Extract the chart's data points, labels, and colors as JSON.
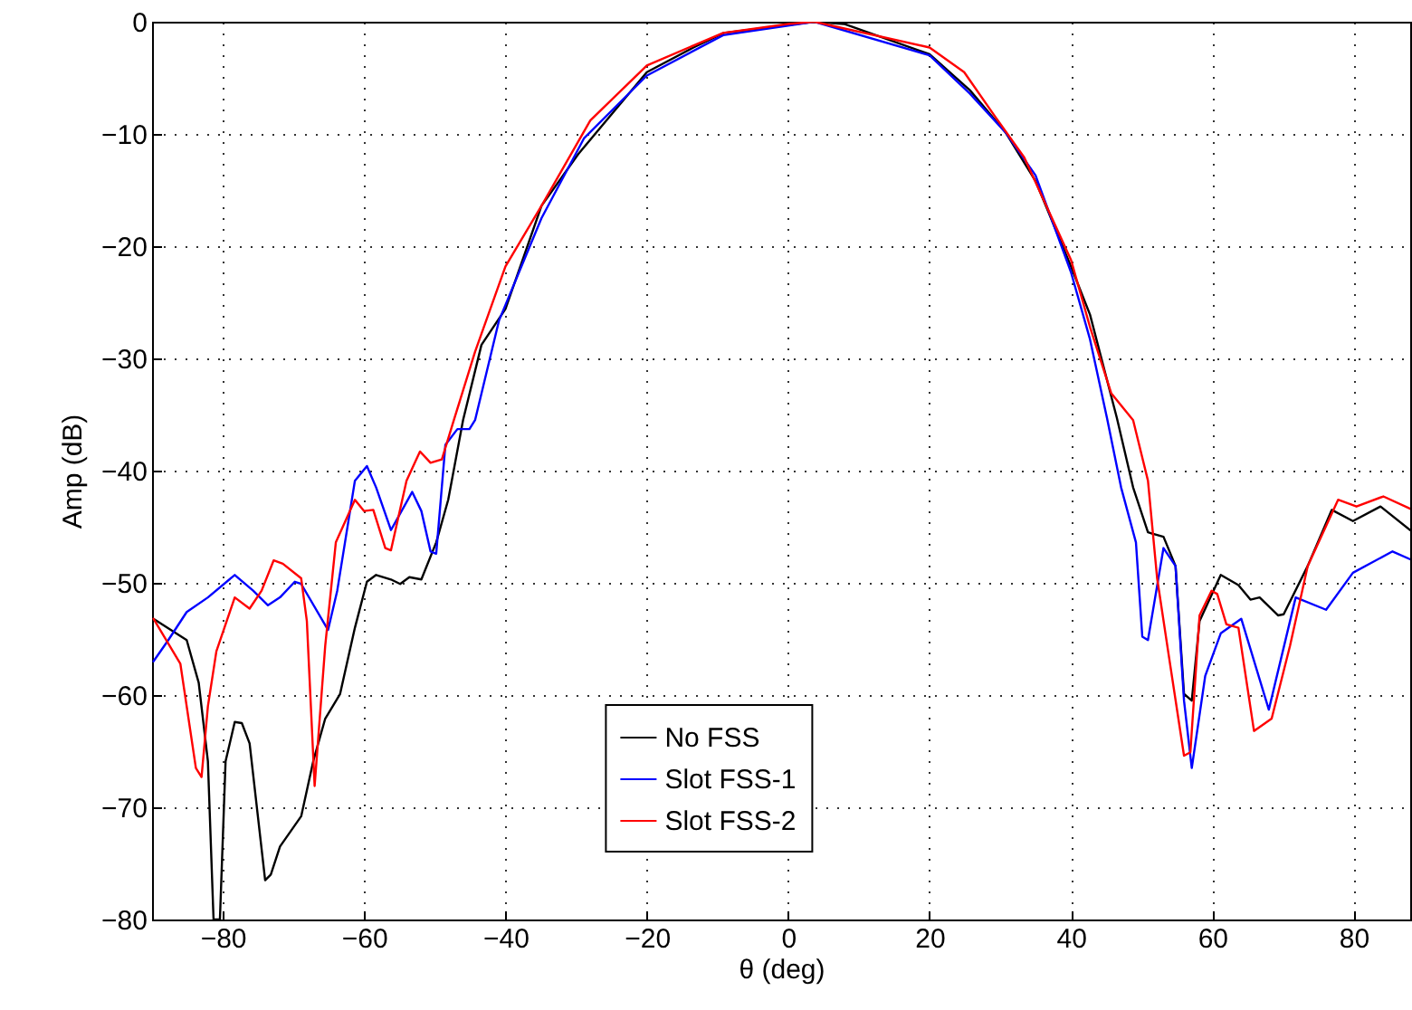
{
  "chart_data": {
    "type": "line",
    "xlabel": "θ (deg)",
    "ylabel": "Amp (dB)",
    "xlim": [
      -90,
      88
    ],
    "xticks": [
      -80,
      -60,
      -40,
      -20,
      0,
      20,
      40,
      60,
      80
    ],
    "ylim": [
      -80,
      0
    ],
    "yticks": [
      -80,
      -70,
      -60,
      -50,
      -40,
      -30,
      -20,
      -10,
      0
    ],
    "grid": true,
    "legend": "bottom",
    "line_style": "solid",
    "series": [
      {
        "name": "No FSS",
        "color": "#000000",
        "x": [
          -89.8,
          -85.1,
          -83.4,
          -82.1,
          -81.3,
          -80.4,
          -79.6,
          -78.3,
          -77.3,
          -76.2,
          -74.0,
          -73.2,
          -71.9,
          -68.9,
          -67.2,
          -65.5,
          -63.4,
          -61.3,
          -59.6,
          -58.3,
          -56.2,
          -54.9,
          -53.6,
          -51.9,
          -49.8,
          -48.1,
          -46.0,
          -43.4,
          -40.0,
          -34.9,
          -29.7,
          -20.0,
          -13.4,
          -9.1,
          3.7,
          7.9,
          20.0,
          25.7,
          30.8,
          35.0,
          40.0,
          42.7,
          46.5,
          48.8,
          50.9,
          53.1,
          54.8,
          56.0,
          57.1,
          58.2,
          61.2,
          63.7,
          65.4,
          66.7,
          69.3,
          70.1,
          73.5,
          76.9,
          79.9,
          83.8,
          88.0
        ],
        "values": [
          -53.2,
          -55.1,
          -58.9,
          -65.9,
          -80,
          -80,
          -65.9,
          -62.4,
          -62.5,
          -64.3,
          -76.5,
          -76.0,
          -73.5,
          -70.8,
          -65.9,
          -62.1,
          -59.9,
          -54.0,
          -49.9,
          -49.3,
          -49.7,
          -50.1,
          -49.5,
          -49.7,
          -46.4,
          -42.6,
          -35.5,
          -28.8,
          -25.6,
          -16.4,
          -11.8,
          -4.5,
          -2.3,
          -1.0,
          0,
          -0.2,
          -2.9,
          -6.1,
          -9.9,
          -14.2,
          -21.8,
          -26.1,
          -35.3,
          -41.5,
          -45.5,
          -45.9,
          -48.5,
          -59.9,
          -60.5,
          -53.4,
          -49.3,
          -50.2,
          -51.5,
          -51.3,
          -52.9,
          -52.8,
          -48.5,
          -43.5,
          -44.5,
          -43.2,
          -45.3
        ]
      },
      {
        "name": "Slot FSS-1",
        "color": "#0000ff",
        "x": [
          -89.8,
          -87.7,
          -85.1,
          -82.1,
          -78.3,
          -75.7,
          -73.6,
          -71.9,
          -69.8,
          -68.9,
          -65.1,
          -63.8,
          -61.3,
          -59.6,
          -58.3,
          -56.2,
          -53.2,
          -51.9,
          -50.6,
          -49.8,
          -48.5,
          -46.8,
          -45.1,
          -44.3,
          -40.9,
          -34.9,
          -28.9,
          -20.0,
          -9.2,
          3.7,
          20.0,
          25.7,
          30.8,
          35.0,
          40.0,
          42.7,
          45.1,
          47.1,
          49.2,
          50.1,
          50.9,
          53.1,
          54.8,
          56.0,
          57.1,
          59.0,
          61.2,
          64.1,
          68.0,
          71.8,
          76.1,
          79.9,
          85.5,
          88.0
        ],
        "values": [
          -57.0,
          -55.1,
          -52.6,
          -51.3,
          -49.3,
          -50.7,
          -52.0,
          -51.3,
          -49.9,
          -50.1,
          -54.2,
          -50.7,
          -40.9,
          -39.6,
          -41.5,
          -45.3,
          -41.9,
          -43.6,
          -47.2,
          -47.4,
          -37.7,
          -36.3,
          -36.3,
          -35.5,
          -26.6,
          -17.5,
          -10.4,
          -4.8,
          -1.2,
          0,
          -3.0,
          -6.4,
          -9.9,
          -13.7,
          -22.3,
          -28.3,
          -35.3,
          -41.5,
          -46.4,
          -54.8,
          -55.1,
          -46.9,
          -48.5,
          -60.5,
          -66.5,
          -58.3,
          -54.5,
          -53.2,
          -61.3,
          -51.3,
          -52.4,
          -49.1,
          -47.2,
          -47.9
        ]
      },
      {
        "name": "Slot FSS-2",
        "color": "#ff0000",
        "x": [
          -89.8,
          -86.0,
          -83.8,
          -83.0,
          -82.1,
          -80.9,
          -78.3,
          -76.2,
          -74.5,
          -72.8,
          -71.5,
          -68.9,
          -68.1,
          -67.0,
          -65.5,
          -64.0,
          -61.3,
          -60.0,
          -58.7,
          -57.0,
          -56.2,
          -54.0,
          -52.1,
          -50.6,
          -49.0,
          -47.3,
          -44.3,
          -40.0,
          -34.9,
          -28.0,
          -20.0,
          -9.2,
          0,
          3.7,
          20.0,
          24.9,
          29.1,
          33.4,
          40.0,
          42.7,
          45.7,
          48.8,
          50.9,
          52.2,
          53.9,
          56.0,
          56.9,
          58.2,
          59.9,
          60.7,
          62.0,
          63.7,
          65.9,
          68.4,
          71.0,
          73.5,
          77.8,
          80.4,
          84.2,
          88.0
        ],
        "values": [
          -53.2,
          -57.2,
          -66.5,
          -67.3,
          -61.0,
          -56.1,
          -51.3,
          -52.3,
          -50.7,
          -48.0,
          -48.3,
          -49.6,
          -53.4,
          -68.1,
          -55.6,
          -46.4,
          -42.6,
          -43.6,
          -43.5,
          -46.9,
          -47.1,
          -40.9,
          -38.3,
          -39.3,
          -39.0,
          -35.5,
          -29.4,
          -21.8,
          -16.4,
          -8.8,
          -3.9,
          -1.0,
          -0.2,
          0,
          -2.3,
          -4.5,
          -8.3,
          -12.1,
          -21.2,
          -27.2,
          -33.1,
          -35.5,
          -40.9,
          -49.6,
          -56.7,
          -65.4,
          -65.1,
          -52.9,
          -50.7,
          -51.0,
          -53.7,
          -54.0,
          -63.2,
          -62.1,
          -55.6,
          -48.5,
          -42.6,
          -43.2,
          -42.3,
          -43.4
        ]
      }
    ]
  }
}
